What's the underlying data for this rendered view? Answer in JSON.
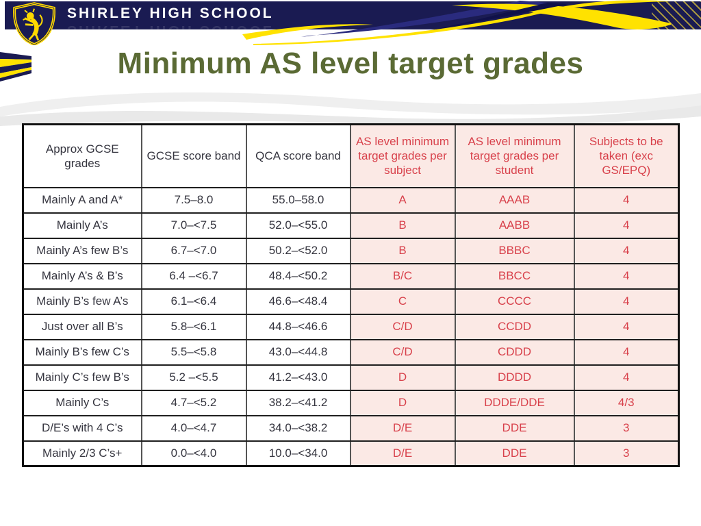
{
  "header": {
    "school_name": "SHIRLEY HIGH SCHOOL"
  },
  "title": "Minimum AS level target grades",
  "table": {
    "columns": [
      {
        "label": "Approx GCSE grades",
        "style": "plain"
      },
      {
        "label": "GCSE score band",
        "style": "plain"
      },
      {
        "label": "QCA score band",
        "style": "plain"
      },
      {
        "label": "AS level minimum target grades per subject",
        "style": "accent"
      },
      {
        "label": "AS level minimum target grades per student",
        "style": "accent"
      },
      {
        "label": "Subjects to be taken (exc GS/EPQ)",
        "style": "accent"
      }
    ],
    "rows": [
      [
        "Mainly A and A*",
        "7.5–8.0",
        "55.0–58.0",
        "A",
        "AAAB",
        "4"
      ],
      [
        "Mainly A’s",
        "7.0–<7.5",
        "52.0–<55.0",
        "B",
        "AABB",
        "4"
      ],
      [
        "Mainly A’s few B’s",
        "6.7–<7.0",
        "50.2–<52.0",
        "B",
        "BBBC",
        "4"
      ],
      [
        "Mainly A’s & B’s",
        "6.4 –<6.7",
        "48.4–<50.2",
        "B/C",
        "BBCC",
        "4"
      ],
      [
        "Mainly B’s few A’s",
        "6.1–<6.4",
        "46.6–<48.4",
        "C",
        "CCCC",
        "4"
      ],
      [
        "Just over all B’s",
        "5.8–<6.1",
        "44.8–<46.6",
        "C/D",
        "CCDD",
        "4"
      ],
      [
        "Mainly B’s few C’s",
        "5.5–<5.8",
        "43.0–<44.8",
        "C/D",
        "CDDD",
        "4"
      ],
      [
        "Mainly C’s few B’s",
        "5.2 –<5.5",
        "41.2–<43.0",
        "D",
        "DDDD",
        "4"
      ],
      [
        "Mainly C’s",
        "4.7–<5.2",
        "38.2–<41.2",
        "D",
        "DDDE/DDE",
        "4/3"
      ],
      [
        "D/E’s with 4 C’s",
        "4.0–<4.7",
        "34.0–<38.2",
        "D/E",
        "DDE",
        "3"
      ],
      [
        "Mainly 2/3 C’s+",
        "0.0–<4.0",
        "10.0–<34.0",
        "D/E",
        "DDE",
        "3"
      ]
    ]
  },
  "colors": {
    "navy": "#1a1b52",
    "yellow": "#ffe200",
    "title_green": "#5a6a34",
    "table_red": "#d8414b",
    "table_pink": "#fbe9e5",
    "cell_text": "#35353f",
    "border_dark": "#1f1f1f",
    "border_gray": "#555555",
    "watermark_gray": "#ededed",
    "hatch_olive": "#8a8136"
  }
}
